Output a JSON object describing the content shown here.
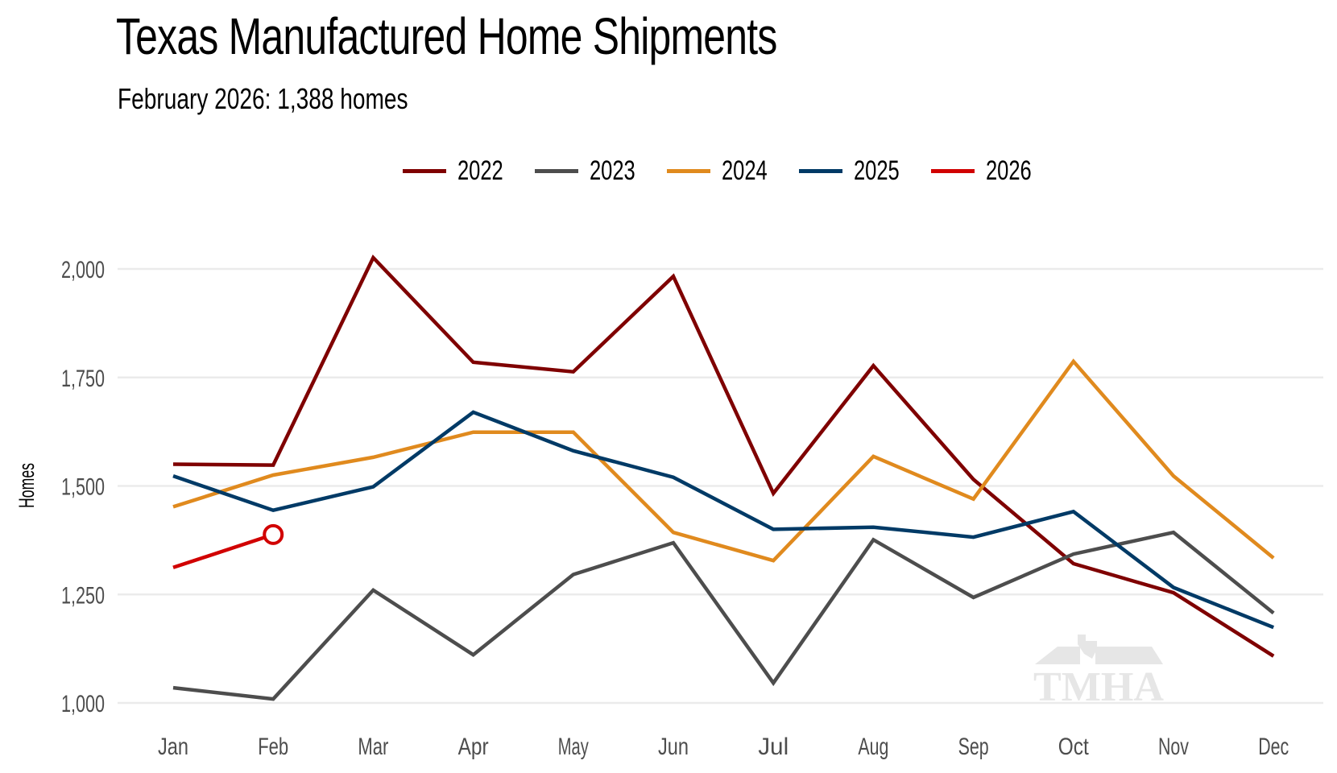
{
  "chart_data": {
    "type": "line",
    "title": "Texas Manufactured Home Shipments",
    "subtitle": "February 2026: 1,388 homes",
    "xlabel": "",
    "ylabel": "Homes",
    "categories": [
      "Jan",
      "Feb",
      "Mar",
      "Apr",
      "May",
      "Jun",
      "Jul",
      "Aug",
      "Sep",
      "Oct",
      "Nov",
      "Dec"
    ],
    "ylim": [
      1000,
      2000
    ],
    "yticks": [
      1000,
      1250,
      1500,
      1750,
      2000
    ],
    "ytick_labels": [
      "1,000",
      "1,250",
      "1,500",
      "1,750",
      "2,000"
    ],
    "grid": true,
    "legend_position": "top-center",
    "series": [
      {
        "name": "2022",
        "color": "#7f0000",
        "values": [
          1550,
          1548,
          2026,
          1785,
          1763,
          1983,
          1483,
          1777,
          1515,
          1321,
          1254,
          1108
        ]
      },
      {
        "name": "2023",
        "color": "#4d4d4d",
        "values": [
          1035,
          1009,
          1260,
          1111,
          1296,
          1369,
          1046,
          1376,
          1243,
          1343,
          1393,
          1207
        ]
      },
      {
        "name": "2024",
        "color": "#e08a1e",
        "values": [
          1452,
          1525,
          1566,
          1624,
          1624,
          1393,
          1328,
          1568,
          1470,
          1787,
          1523,
          1334
        ]
      },
      {
        "name": "2025",
        "color": "#003a66",
        "values": [
          1523,
          1444,
          1498,
          1670,
          1581,
          1520,
          1400,
          1405,
          1382,
          1441,
          1266,
          1174
        ]
      },
      {
        "name": "2026",
        "color": "#d10000",
        "values": [
          1312,
          1388
        ]
      }
    ],
    "highlight_point": {
      "series": "2026",
      "category": "Feb",
      "value": 1388,
      "marker": "hollow-circle"
    },
    "watermark": "TMHA"
  }
}
